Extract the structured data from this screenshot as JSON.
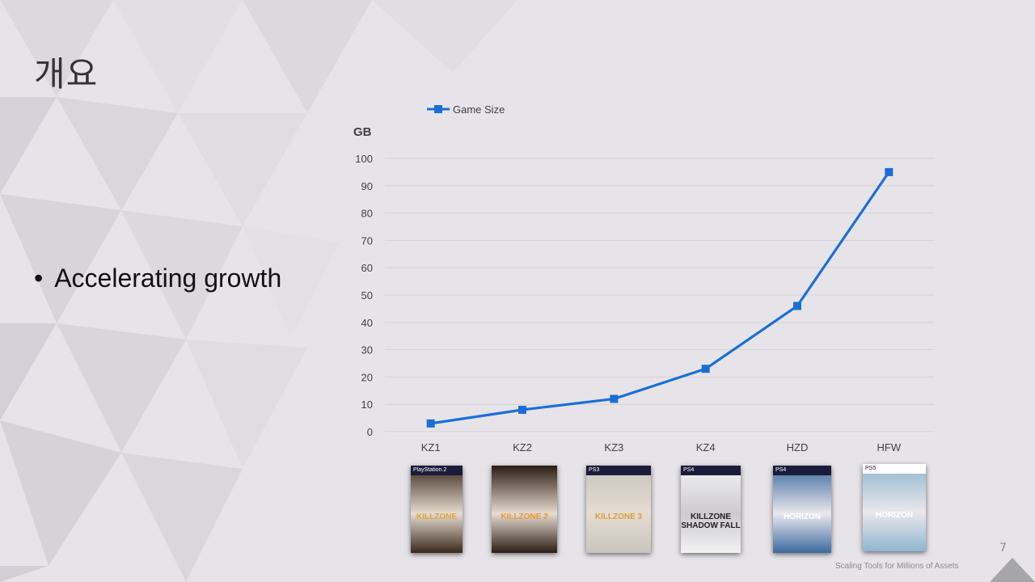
{
  "slide": {
    "title": "개요",
    "bullet": "Accelerating growth",
    "page_number": "7",
    "footer": "Scaling Tools for Millions of Assets"
  },
  "chart_data": {
    "type": "line",
    "categories": [
      "KZ1",
      "KZ2",
      "KZ3",
      "KZ4",
      "HZD",
      "HFW"
    ],
    "series": [
      {
        "name": "Game Size",
        "values": [
          3,
          8,
          12,
          23,
          46,
          95
        ],
        "color": "#1a6fd6"
      }
    ],
    "title": "",
    "ylabel": "GB",
    "xlabel": "",
    "ylim": [
      0,
      100
    ],
    "yticks": [
      0,
      10,
      20,
      30,
      40,
      50,
      60,
      70,
      80,
      90,
      100
    ],
    "grid": true,
    "legend": "top-left",
    "marker": "square"
  },
  "covers": [
    {
      "platform": "PlayStation.2",
      "name": "KILLZONE",
      "bg": "#3a2a1c",
      "accent": "#e0a63a"
    },
    {
      "platform": "",
      "name": "KILLZONE 2",
      "bg": "#2b1d14",
      "accent": "#e89a35"
    },
    {
      "platform": "PS3",
      "name": "KILLZONE 3",
      "bg": "#c8c6be",
      "accent": "#d9a13a"
    },
    {
      "platform": "PS4",
      "name": "KILLZONE SHADOW FALL",
      "bg": "#f2f2f2",
      "accent": "#222222"
    },
    {
      "platform": "PS4",
      "name": "HORIZON",
      "bg": "#3d6aa0",
      "accent": "#ffffff"
    },
    {
      "platform": "PS5",
      "name": "HORIZON",
      "bg": "#8fb6cf",
      "accent": "#ffffff"
    }
  ]
}
